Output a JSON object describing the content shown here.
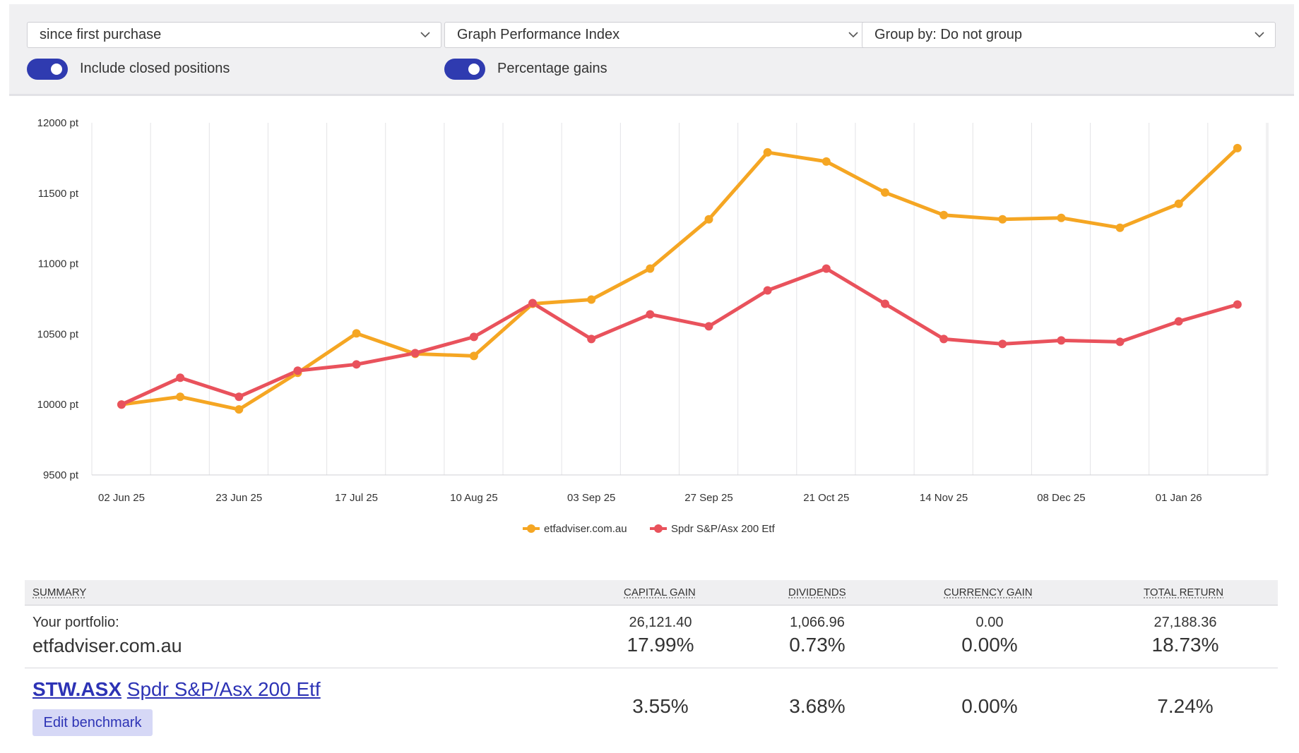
{
  "controls": {
    "period": "since first purchase",
    "graph_type": "Graph Performance Index",
    "group_by": "Group by: Do not group",
    "closed_positions_label": "Include closed positions",
    "closed_positions_on": true,
    "percentage_gains_label": "Percentage gains",
    "percentage_gains_on": true
  },
  "chart_data": {
    "type": "line",
    "y_ticks": [
      "12000 pt",
      "11500 pt",
      "11000 pt",
      "10500 pt",
      "10000 pt",
      "9500 pt"
    ],
    "ylim": [
      9500,
      12000
    ],
    "x_tick_labels": [
      "02 Jun 25",
      "23 Jun 25",
      "17 Jul 25",
      "10 Aug 25",
      "03 Sep 25",
      "27 Sep 25",
      "21 Oct 25",
      "14 Nov 25",
      "08 Dec 25",
      "01 Jan 26"
    ],
    "grid": true,
    "legend_position": "bottom",
    "series": [
      {
        "name": "etfadviser.com.au",
        "color": "#f5a623",
        "values": [
          10000,
          10055,
          9965,
          10225,
          10505,
          10360,
          10345,
          10715,
          10745,
          10965,
          11315,
          11790,
          11725,
          11505,
          11345,
          11315,
          11325,
          11255,
          11425,
          11820
        ]
      },
      {
        "name": "Spdr S&P/Asx 200 Etf",
        "color": "#e9525c",
        "values": [
          10000,
          10190,
          10055,
          10240,
          10285,
          10365,
          10480,
          10720,
          10465,
          10640,
          10555,
          10810,
          10965,
          10715,
          10465,
          10430,
          10455,
          10445,
          10590,
          10710
        ]
      }
    ]
  },
  "summary": {
    "headers": {
      "summary": "SUMMARY",
      "capital_gain": "CAPITAL GAIN",
      "dividends": "DIVIDENDS",
      "currency_gain": "CURRENCY GAIN",
      "total_return": "TOTAL RETURN"
    },
    "portfolio": {
      "label": "Your portfolio:",
      "name": "etfadviser.com.au",
      "capital_gain": "26,121.40",
      "capital_gain_pct": "17.99%",
      "dividends": "1,066.96",
      "dividends_pct": "0.73%",
      "currency_gain": "0.00",
      "currency_gain_pct": "0.00%",
      "total_return": "27,188.36",
      "total_return_pct": "18.73%"
    },
    "benchmark": {
      "ticker": "STW.ASX",
      "name": "Spdr S&P/Asx 200 Etf",
      "capital_gain_pct": "3.55%",
      "dividends_pct": "3.68%",
      "currency_gain_pct": "0.00%",
      "total_return_pct": "7.24%",
      "edit_label": "Edit benchmark"
    }
  }
}
